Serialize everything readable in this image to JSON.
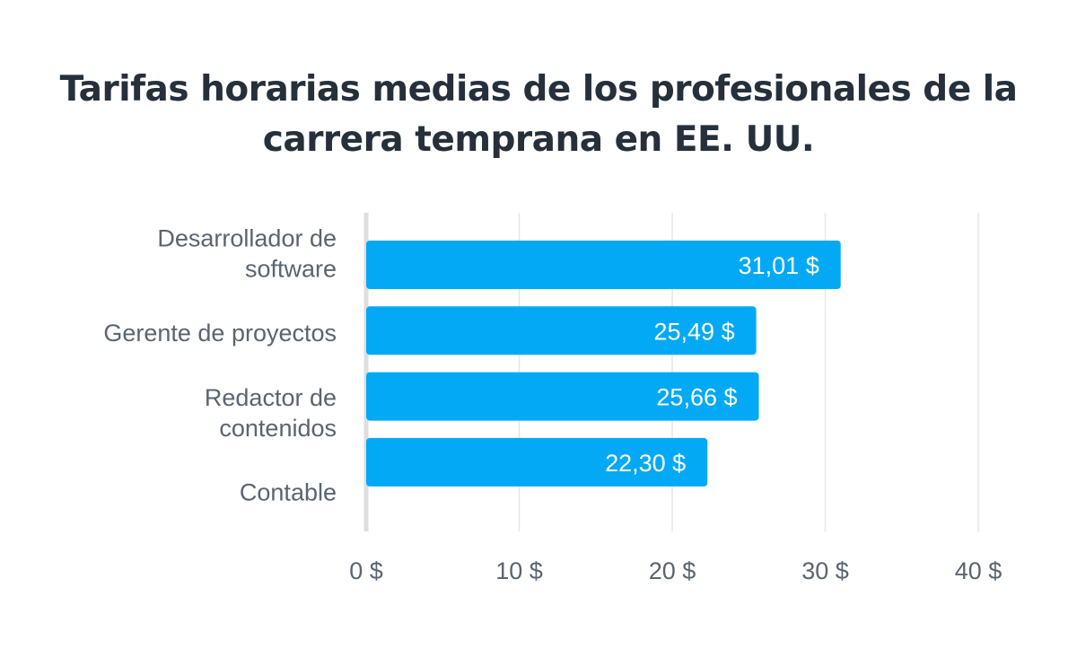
{
  "chart_data": {
    "type": "bar",
    "orientation": "horizontal",
    "title": "Tarifas horarias medias de los profesionales de la carrera temprana en EE. UU.",
    "title_lines": [
      "Tarifas horarias medias de los profesionales de la",
      "carrera temprana en EE. UU."
    ],
    "categories": [
      {
        "name": "Desarrollador de software",
        "lines": [
          "Desarrollador de",
          "software"
        ]
      },
      {
        "name": "Gerente de proyectos",
        "lines": [
          "Gerente de proyectos"
        ]
      },
      {
        "name": "Redactor de contenidos",
        "lines": [
          "Redactor de",
          "contenidos"
        ]
      },
      {
        "name": "Contable",
        "lines": [
          "Contable"
        ]
      }
    ],
    "values": [
      31.01,
      25.49,
      25.66,
      22.3
    ],
    "value_labels": [
      "31,01 $",
      "25,49 $",
      "25,66 $",
      "22,30 $"
    ],
    "xlim": [
      0,
      40
    ],
    "x_ticks": [
      0,
      10,
      20,
      30,
      40
    ],
    "x_tick_labels": [
      "0 $",
      "10 $",
      "20 $",
      "30 $",
      "40 $"
    ],
    "grid": true,
    "bar_color": "#03a9f4",
    "xlabel": "",
    "ylabel": ""
  }
}
